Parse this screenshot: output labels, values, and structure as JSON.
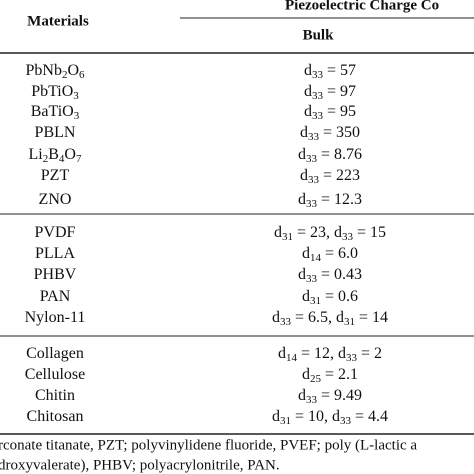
{
  "header": {
    "materials": "Materials",
    "group": "Piezoelectric Charge Co",
    "subgroup": "Bulk"
  },
  "table": {
    "rows": [
      [
        [
          {
            "text": "PbNb"
          },
          {
            "sub": "2"
          },
          {
            "text": "O"
          },
          {
            "sub": "6"
          }
        ],
        [
          {
            "text": "d"
          },
          {
            "sub": "33"
          },
          {
            "text": " = 57"
          }
        ]
      ],
      [
        [
          {
            "text": "PbTiO"
          },
          {
            "sub": "3"
          }
        ],
        [
          {
            "text": "d"
          },
          {
            "sub": "33"
          },
          {
            "text": " = 97"
          }
        ]
      ],
      [
        [
          {
            "text": "BaTiO"
          },
          {
            "sub": "3"
          }
        ],
        [
          {
            "text": "d"
          },
          {
            "sub": "33"
          },
          {
            "text": " = 95"
          }
        ]
      ],
      [
        [
          {
            "text": "PBLN"
          }
        ],
        [
          {
            "text": "d"
          },
          {
            "sub": "33"
          },
          {
            "text": " = 350"
          }
        ]
      ],
      [
        [
          {
            "text": "Li"
          },
          {
            "sub": "2"
          },
          {
            "text": "B"
          },
          {
            "sub": "4"
          },
          {
            "text": "O"
          },
          {
            "sub": "7"
          }
        ],
        [
          {
            "text": "d"
          },
          {
            "sub": "33"
          },
          {
            "text": " = 8.76"
          }
        ]
      ],
      [
        [
          {
            "text": "PZT"
          }
        ],
        [
          {
            "text": "d"
          },
          {
            "sub": "33"
          },
          {
            "text": " = 223"
          }
        ]
      ],
      [
        [
          {
            "text": "ZNO"
          }
        ],
        [
          {
            "text": "d"
          },
          {
            "sub": "33"
          },
          {
            "text": " = 12.3"
          }
        ]
      ],
      [
        [
          {
            "text": "PVDF"
          }
        ],
        [
          {
            "text": "d"
          },
          {
            "sub": "31"
          },
          {
            "text": " = 23, d"
          },
          {
            "sub": "33"
          },
          {
            "text": " = 15"
          }
        ]
      ],
      [
        [
          {
            "text": "PLLA"
          }
        ],
        [
          {
            "text": "d"
          },
          {
            "sub": "14"
          },
          {
            "text": " = 6.0"
          }
        ]
      ],
      [
        [
          {
            "text": "PHBV"
          }
        ],
        [
          {
            "text": "d"
          },
          {
            "sub": "33"
          },
          {
            "text": " = 0.43"
          }
        ]
      ],
      [
        [
          {
            "text": "PAN"
          }
        ],
        [
          {
            "text": "d"
          },
          {
            "sub": "31"
          },
          {
            "text": " = 0.6"
          }
        ]
      ],
      [
        [
          {
            "text": "Nylon-11"
          }
        ],
        [
          {
            "text": "d"
          },
          {
            "sub": "33"
          },
          {
            "text": " = 6.5, d"
          },
          {
            "sub": "31"
          },
          {
            "text": " = 14"
          }
        ]
      ],
      [
        [
          {
            "text": "Collagen"
          }
        ],
        [
          {
            "text": "d"
          },
          {
            "sub": "14"
          },
          {
            "text": " = 12, d"
          },
          {
            "sub": "33"
          },
          {
            "text": " = 2"
          }
        ]
      ],
      [
        [
          {
            "text": "Cellulose"
          }
        ],
        [
          {
            "text": "d"
          },
          {
            "sub": "25"
          },
          {
            "text": " = 2.1"
          }
        ]
      ],
      [
        [
          {
            "text": "Chitin"
          }
        ],
        [
          {
            "text": "d"
          },
          {
            "sub": "33"
          },
          {
            "text": " = 9.49"
          }
        ]
      ],
      [
        [
          {
            "text": "Chitosan"
          }
        ],
        [
          {
            "text": "d"
          },
          {
            "sub": "31"
          },
          {
            "text": " = 10, d"
          },
          {
            "sub": "33"
          },
          {
            "text": " = 4.4"
          }
        ]
      ]
    ]
  },
  "footnote": [
    "rconate titanate, PZT; polyvinylidene fluoride, PVEF; poly (L-lactic a",
    "droxyvalerate), PHBV; polyacrylonitrile, PAN."
  ]
}
